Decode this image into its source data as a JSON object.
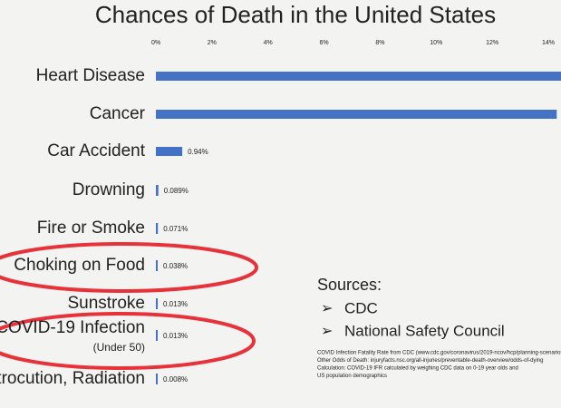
{
  "chart_data": {
    "type": "bar",
    "orientation": "horizontal",
    "title": "Chances of Death in the United States",
    "categories": [
      "Heart Disease",
      "Cancer",
      "Car Accident",
      "Drowning",
      "Fire or Smoke",
      "Choking on Food",
      "Sunstroke",
      "COVID-19 Infection",
      "Electrocution, Radiation"
    ],
    "category_notes": {
      "7": "(Under 50)"
    },
    "values": [
      14.5,
      14.3,
      0.94,
      0.089,
      0.071,
      0.038,
      0.013,
      0.013,
      0.008
    ],
    "value_labels": [
      null,
      null,
      "0.94%",
      "0.089%",
      "0.071%",
      "0.038%",
      "0.013%",
      "0.013%",
      "0.008%"
    ],
    "color": "#4472c4",
    "xlim": [
      0,
      14
    ],
    "xticks": [
      {
        "value": 0,
        "label": "0%"
      },
      {
        "value": 2,
        "label": "2%"
      },
      {
        "value": 4,
        "label": "4%"
      },
      {
        "value": 6,
        "label": "6%"
      },
      {
        "value": 8,
        "label": "8%"
      },
      {
        "value": 10,
        "label": "10%"
      },
      {
        "value": 12,
        "label": "12%"
      },
      {
        "value": 14,
        "label": "14%"
      }
    ],
    "highlighted": [
      5,
      7
    ],
    "sources": {
      "heading": "Sources:",
      "items": [
        "CDC",
        "National Safety Council"
      ],
      "notes": [
        "COVID Infection Fatality Rate from CDC (www.cdc.gov/coronavirus/2019-ncov/hcp/planning-scenarios.html)",
        "Other Odds of Death: injuryfacts.nsc.org/all-injuries/preventable-death-overview/odds-of-dying",
        "Calculation: COVID-19 IFR calculated by weighing CDC data on 0-19 year olds and",
        "US population demographics"
      ]
    }
  }
}
